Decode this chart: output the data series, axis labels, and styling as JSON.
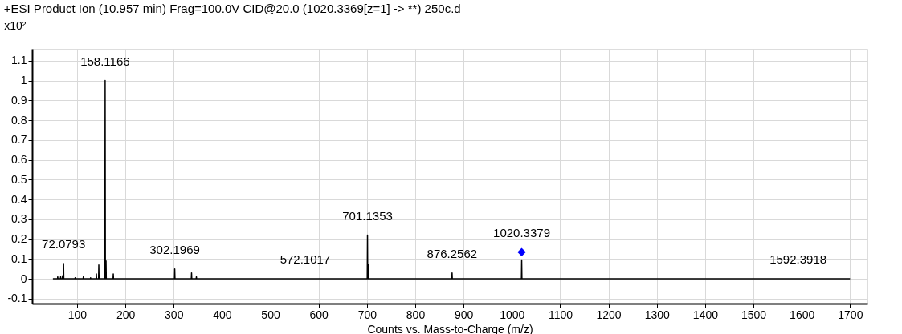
{
  "chart_data": {
    "type": "line",
    "title": "+ESI Product Ion (10.957 min) Frag=100.0V CID@20.0 (1020.3369[z=1] -> **) 250c.d",
    "xlabel": "Counts vs. Mass-to-Charge (m/z)",
    "ylabel": "x10²",
    "series": [
      {
        "color": "#000000",
        "x": [
          50,
          59.5,
          60,
          60.5,
          65.5,
          66,
          66.5,
          69.5,
          70,
          70.5,
          71.58,
          72.08,
          72.58,
          95.5,
          96,
          96.5,
          112.5,
          113,
          113.5,
          127.5,
          128,
          128.5,
          139.5,
          140,
          140.5,
          144.5,
          145,
          145.5,
          157.62,
          158.12,
          158.62,
          159.5,
          160,
          160.5,
          174.5,
          175,
          175.5,
          301.7,
          302.2,
          302.7,
          336.5,
          337,
          337.5,
          346.5,
          347,
          347.5,
          700.64,
          701.14,
          701.64,
          702.5,
          703,
          703.5,
          875.76,
          876.26,
          876.76,
          1019.84,
          1020.34,
          1020.84,
          1700
        ],
        "values": [
          0,
          0,
          0.01,
          0,
          0,
          0.01,
          0,
          0,
          0.015,
          0,
          0,
          0.077,
          0,
          0,
          0.005,
          0,
          0,
          0.01,
          0,
          0,
          0.005,
          0,
          0,
          0.025,
          0,
          0,
          0.07,
          0,
          0,
          1.0,
          0,
          0,
          0.09,
          0,
          0,
          0.025,
          0,
          0,
          0.05,
          0,
          0,
          0.03,
          0,
          0,
          0.01,
          0,
          0,
          0.22,
          0,
          0,
          0.07,
          0,
          0,
          0.03,
          0,
          0,
          0.095,
          0,
          0
        ]
      },
      {
        "type": "scatter",
        "color": "#0000ff",
        "marker": "diamond",
        "x": [
          1020.3379
        ],
        "values": [
          0.135
        ]
      }
    ],
    "annotations": [
      {
        "text": "158.1166",
        "x": 158.12,
        "y": 1.0
      },
      {
        "text": "72.0793",
        "x": 72.08,
        "y": 0.077
      },
      {
        "text": "302.1969",
        "x": 302.2,
        "y": 0.05
      },
      {
        "text": "572.1017",
        "x": 572.1017,
        "y": 0
      },
      {
        "text": "701.1353",
        "x": 701.14,
        "y": 0.22
      },
      {
        "text": "876.2562",
        "x": 876.26,
        "y": 0.03
      },
      {
        "text": "1020.3379",
        "x": 1020.3379,
        "y": 0.135
      },
      {
        "text": "1592.3918",
        "x": 1592.3918,
        "y": 0
      }
    ],
    "xlim": [
      7,
      1736
    ],
    "ylim": [
      -0.125,
      1.16
    ],
    "xticks": [
      100,
      200,
      300,
      400,
      500,
      600,
      700,
      800,
      900,
      1000,
      1100,
      1200,
      1300,
      1400,
      1500,
      1600,
      1700
    ],
    "yticks": [
      -0.1,
      0,
      0.1,
      0.2,
      0.3,
      0.4,
      0.5,
      0.6,
      0.7,
      0.8,
      0.9,
      1,
      1.1
    ],
    "grid": true,
    "line_style": "solid"
  }
}
